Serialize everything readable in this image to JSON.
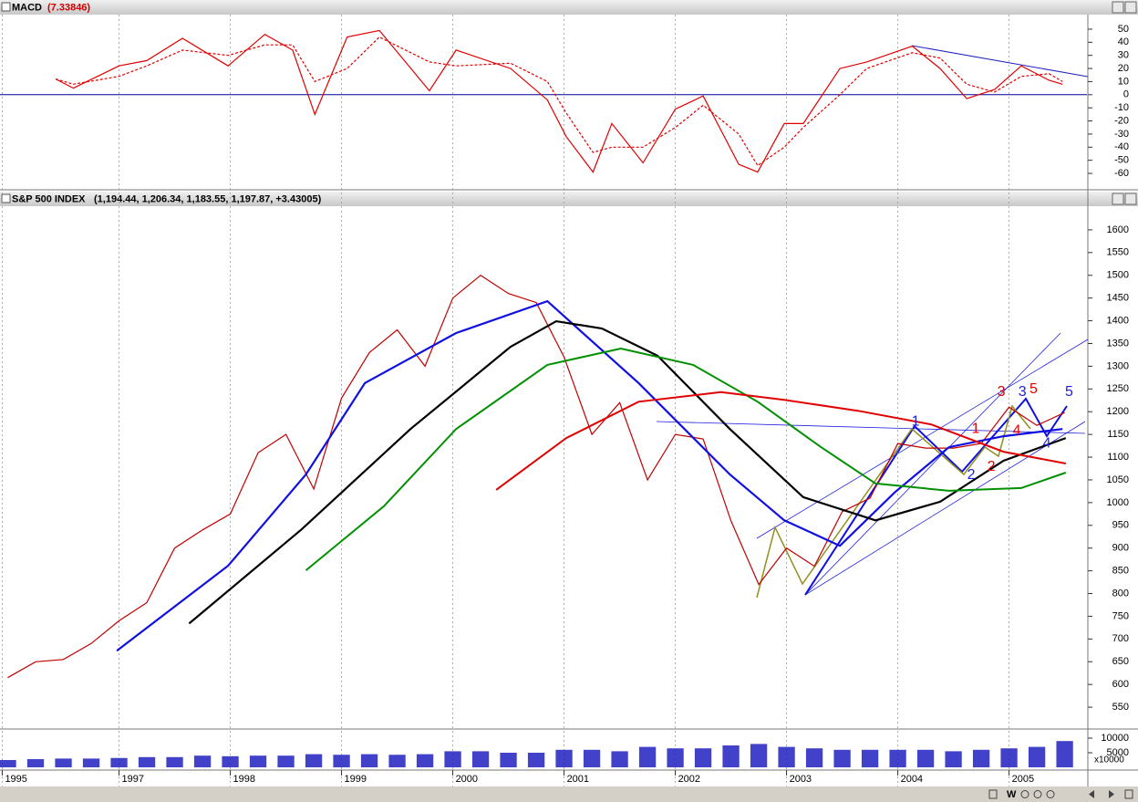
{
  "chart_data": [
    {
      "type": "line",
      "title": "MACD",
      "subtitle": "(7.33846)",
      "xlim": [
        1995.93,
        2005.7
      ],
      "ylim": [
        -72.5,
        61.1
      ],
      "yticks": [
        50,
        40,
        30,
        20,
        10,
        0,
        -10,
        -20,
        -30,
        -40,
        -50,
        -60
      ],
      "zero_line_color": "#0000a0",
      "series": [
        {
          "color": "#e00000",
          "dashed": false,
          "x": [
            1996.43,
            1996.59,
            1997.0,
            1997.25,
            1997.57,
            1997.98,
            1998.31,
            1998.56,
            1998.76,
            1999.05,
            1999.34,
            1999.79,
            2000.03,
            2000.52,
            2000.85,
            2001.02,
            2001.26,
            2001.43,
            2001.71,
            2002.0,
            2002.25,
            2002.57,
            2002.74,
            2002.98,
            2003.15,
            2003.48,
            2003.72,
            2004.13,
            2004.38,
            2004.62,
            2004.87,
            2005.11,
            2005.36,
            2005.48
          ],
          "values": [
            12,
            5,
            22,
            26,
            43,
            22,
            46,
            34,
            -15,
            44,
            49,
            3,
            34,
            20,
            -4,
            -32,
            -59,
            -22,
            -52,
            -11,
            -1,
            -53,
            -59,
            -22,
            -22,
            20,
            25,
            37,
            20,
            -3,
            4,
            22,
            11,
            8
          ]
        },
        {
          "color": "#e00000",
          "dashed": true,
          "x": [
            1996.43,
            1996.59,
            1997.0,
            1997.25,
            1997.57,
            1997.98,
            1998.31,
            1998.56,
            1998.76,
            1999.05,
            1999.34,
            1999.79,
            2000.03,
            2000.52,
            2000.85,
            2001.02,
            2001.26,
            2001.43,
            2001.71,
            2002.0,
            2002.25,
            2002.57,
            2002.74,
            2002.98,
            2003.15,
            2003.48,
            2003.72,
            2004.13,
            2004.38,
            2004.62,
            2004.87,
            2005.11,
            2005.36,
            2005.48
          ],
          "values": [
            12,
            8,
            14,
            22,
            34,
            30,
            38,
            38,
            10,
            20,
            44,
            25,
            22,
            24,
            10,
            -14,
            -44,
            -40,
            -40,
            -25,
            -8,
            -30,
            -54,
            -40,
            -25,
            0,
            20,
            32,
            28,
            8,
            2,
            14,
            16,
            10
          ]
        }
      ]
    },
    {
      "type": "line",
      "title": "S&P 500 INDEX",
      "subtitle": "(1,194.44, 1,206.34, 1,183.55, 1,197.87, +3.43005)",
      "xlim": [
        1995.93,
        2005.7
      ],
      "ylim": [
        504,
        1648
      ],
      "yticks": [
        1600,
        1550,
        1500,
        1450,
        1400,
        1350,
        1300,
        1250,
        1200,
        1150,
        1100,
        1050,
        1000,
        950,
        900,
        850,
        800,
        750,
        700,
        650,
        600,
        550
      ],
      "series": [
        {
          "color": "#c00000",
          "width": 1.2,
          "x": [
            1996.0,
            1996.25,
            1996.5,
            1996.75,
            1997.0,
            1997.25,
            1997.5,
            1997.75,
            1998.0,
            1998.25,
            1998.5,
            1998.75,
            1999.0,
            1999.25,
            1999.5,
            1999.75,
            2000.0,
            2000.25,
            2000.5,
            2000.75,
            2001.0,
            2001.25,
            2001.5,
            2001.75,
            2002.0,
            2002.25,
            2002.5,
            2002.75,
            2003.0,
            2003.25,
            2003.5,
            2003.75,
            2004.0,
            2004.25,
            2004.5,
            2004.75,
            2005.0,
            2005.25,
            2005.5
          ],
          "values": [
            615,
            650,
            655,
            690,
            740,
            780,
            900,
            940,
            975,
            1110,
            1150,
            1030,
            1230,
            1330,
            1380,
            1300,
            1450,
            1500,
            1460,
            1440,
            1320,
            1150,
            1220,
            1050,
            1150,
            1140,
            960,
            820,
            900,
            860,
            980,
            1010,
            1130,
            1120,
            1120,
            1130,
            1210,
            1170,
            1198
          ]
        },
        {
          "color": "#1010e0",
          "width": 2.2,
          "x": [
            1996.98,
            1997.98,
            1998.68,
            1999.21,
            2000.03,
            2000.85,
            2001.67,
            2002.49,
            2002.98,
            2003.48,
            2003.97,
            2004.46,
            2004.95,
            2005.48
          ],
          "values": [
            674,
            861,
            1062,
            1263,
            1373,
            1443,
            1263,
            1062,
            961,
            905,
            1022,
            1122,
            1146,
            1162
          ]
        },
        {
          "color": "#000000",
          "width": 2.2,
          "x": [
            1997.63,
            1998.64,
            1999.62,
            2000.52,
            2000.93,
            2001.34,
            2001.84,
            2002.49,
            2003.15,
            2003.8,
            2004.38,
            2004.95,
            2005.51
          ],
          "values": [
            734,
            941,
            1162,
            1343,
            1399,
            1383,
            1323,
            1162,
            1012,
            961,
            1002,
            1092,
            1142
          ]
        },
        {
          "color": "#009000",
          "width": 2,
          "x": [
            1998.68,
            1999.38,
            2000.03,
            2000.85,
            2001.51,
            2002.16,
            2002.74,
            2003.31,
            2003.8,
            2004.46,
            2005.11,
            2005.51
          ],
          "values": [
            851,
            992,
            1162,
            1303,
            1339,
            1303,
            1222,
            1122,
            1042,
            1026,
            1032,
            1066
          ]
        },
        {
          "color": "#e00000",
          "width": 2,
          "x": [
            2000.39,
            2001.02,
            2001.67,
            2002.41,
            2002.98,
            2003.64,
            2004.3,
            2004.95,
            2005.51
          ],
          "values": [
            1028,
            1142,
            1222,
            1243,
            1226,
            1202,
            1172,
            1112,
            1086
          ]
        }
      ],
      "annotations": [
        {
          "text": "1",
          "color": "#2020e0",
          "x": 2004.16,
          "y": 1178
        },
        {
          "text": "2",
          "color": "#2020e0",
          "x": 2004.66,
          "y": 1060
        },
        {
          "text": "3",
          "color": "#2020e0",
          "x": 2005.12,
          "y": 1243
        },
        {
          "text": "4",
          "color": "#2020e0",
          "x": 2005.34,
          "y": 1130
        },
        {
          "text": "5",
          "color": "#2020e0",
          "x": 2005.54,
          "y": 1243
        },
        {
          "text": "1",
          "color": "#e00000",
          "x": 2004.7,
          "y": 1162
        },
        {
          "text": "2",
          "color": "#e00000",
          "x": 2004.84,
          "y": 1078
        },
        {
          "text": "3",
          "color": "#e00000",
          "x": 2004.93,
          "y": 1243
        },
        {
          "text": "4",
          "color": "#e00000",
          "x": 2005.07,
          "y": 1158
        },
        {
          "text": "5",
          "color": "#e00000",
          "x": 2005.22,
          "y": 1249
        }
      ]
    },
    {
      "type": "bar",
      "xlim": [
        1995.93,
        2005.7
      ],
      "ylim": [
        -625,
        12812
      ],
      "yticks": [
        10000,
        5000
      ],
      "y_unit_label": "x10000",
      "color": "#2020c0",
      "x": [
        1996.0,
        1996.25,
        1996.5,
        1996.75,
        1997.0,
        1997.25,
        1997.5,
        1997.75,
        1998.0,
        1998.25,
        1998.5,
        1998.75,
        1999.0,
        1999.25,
        1999.5,
        1999.75,
        2000.0,
        2000.25,
        2000.5,
        2000.75,
        2001.0,
        2001.25,
        2001.5,
        2001.75,
        2002.0,
        2002.25,
        2002.5,
        2002.75,
        2003.0,
        2003.25,
        2003.5,
        2003.75,
        2004.0,
        2004.25,
        2004.5,
        2004.75,
        2005.0,
        2005.25,
        2005.5
      ],
      "values": [
        2500,
        2800,
        3000,
        3000,
        3200,
        3500,
        3500,
        4000,
        3800,
        4000,
        4000,
        4500,
        4300,
        4500,
        4300,
        4500,
        5500,
        5500,
        5000,
        5000,
        6000,
        6000,
        5500,
        7000,
        6500,
        6500,
        7500,
        8000,
        7000,
        6500,
        6000,
        6000,
        6000,
        6000,
        5500,
        6000,
        6500,
        7000,
        9000
      ],
      "xticks": [
        {
          "value": 1995.95,
          "label": "1995"
        },
        1997,
        1998,
        1999,
        2000,
        2001,
        2002,
        2003,
        2004,
        2005
      ]
    }
  ],
  "toolbar_label": "W"
}
